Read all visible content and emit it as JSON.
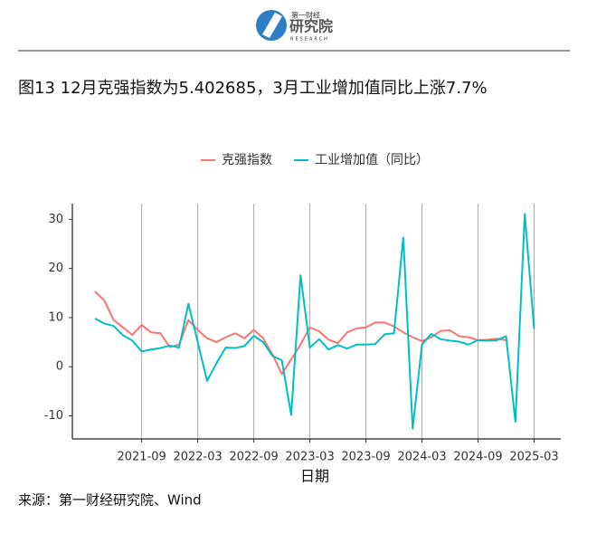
{
  "header": {
    "logo_top": "第一财经",
    "logo_main": "研究院",
    "logo_sub": "RESEARCH"
  },
  "title": "图13 12月克强指数为5.402685，3月工业增加值同比上涨7.7%",
  "source": "来源：第一财经研究院、Wind",
  "chart_data": {
    "type": "line",
    "xlabel": "日期",
    "legend_position": "top",
    "x": [
      "2021-04",
      "2021-05",
      "2021-06",
      "2021-07",
      "2021-08",
      "2021-09",
      "2021-10",
      "2021-11",
      "2021-12",
      "2022-01",
      "2022-02",
      "2022-03",
      "2022-04",
      "2022-05",
      "2022-06",
      "2022-07",
      "2022-08",
      "2022-09",
      "2022-10",
      "2022-11",
      "2022-12",
      "2023-01",
      "2023-02",
      "2023-03",
      "2023-04",
      "2023-05",
      "2023-06",
      "2023-07",
      "2023-08",
      "2023-09",
      "2023-10",
      "2023-11",
      "2023-12",
      "2024-01",
      "2024-02",
      "2024-03",
      "2024-04",
      "2024-05",
      "2024-06",
      "2024-07",
      "2024-08",
      "2024-09",
      "2024-10",
      "2024-11",
      "2024-12",
      "2025-01",
      "2025-02",
      "2025-03"
    ],
    "series": [
      {
        "name": "克强指数",
        "color": "#f8766d",
        "values": [
          15.3,
          13.5,
          9.5,
          8,
          6.5,
          8.5,
          7,
          6.8,
          4,
          4.5,
          9.5,
          7.5,
          5.8,
          5,
          6,
          6.8,
          5.8,
          7.5,
          5.8,
          2.5,
          -1.5,
          1.5,
          4.5,
          8,
          7.2,
          5.5,
          4.8,
          7,
          7.8,
          8,
          9,
          9,
          8.2,
          7,
          6,
          5.2,
          6,
          7.3,
          7.4,
          6.2,
          6,
          5.4,
          5.5,
          5.7,
          5.4,
          null,
          null,
          null
        ]
      },
      {
        "name": "工业增加值（同比）",
        "color": "#00bfc4",
        "values": [
          9.8,
          8.8,
          8.3,
          6.4,
          5.3,
          3.1,
          3.5,
          3.8,
          4.3,
          3.9,
          12.8,
          5.0,
          -2.9,
          0.7,
          3.9,
          3.8,
          4.2,
          6.3,
          5.0,
          2.2,
          1.3,
          -9.8,
          18.6,
          3.9,
          5.6,
          3.5,
          4.4,
          3.7,
          4.5,
          4.5,
          4.6,
          6.6,
          6.8,
          26.3,
          -12.6,
          4.5,
          6.7,
          5.6,
          5.3,
          5.1,
          4.5,
          5.4,
          5.3,
          5.4,
          6.2,
          -11.2,
          31.1,
          7.7
        ]
      }
    ],
    "xticks": [
      "2021-09",
      "2022-03",
      "2022-09",
      "2023-03",
      "2023-09",
      "2024-03",
      "2024-09",
      "2025-03"
    ],
    "ylim": [
      -14.7,
      33.2
    ],
    "yticks": [
      -10,
      0,
      10,
      20,
      30
    ],
    "grid": "x"
  }
}
